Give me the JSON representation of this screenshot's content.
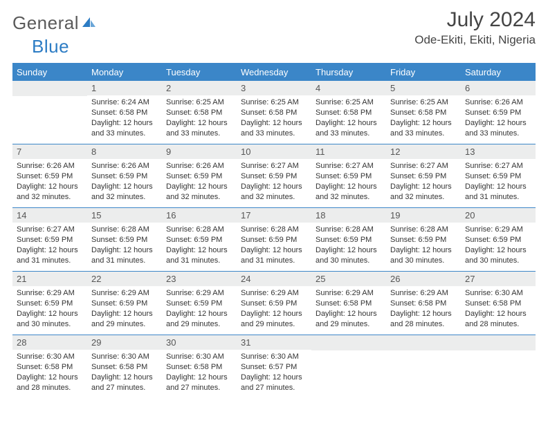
{
  "logo": {
    "text1": "General",
    "text2": "Blue",
    "text_color": "#5a5a5a",
    "accent_color": "#2c7cc4"
  },
  "header": {
    "month_title": "July 2024",
    "location": "Ode-Ekiti, Ekiti, Nigeria"
  },
  "colors": {
    "header_bg": "#3b86c8",
    "header_text": "#ffffff",
    "cell_num_bg": "#eceded",
    "divider": "#3b86c8"
  },
  "day_names": [
    "Sunday",
    "Monday",
    "Tuesday",
    "Wednesday",
    "Thursday",
    "Friday",
    "Saturday"
  ],
  "weeks": [
    [
      {
        "n": "",
        "sunrise": "",
        "sunset": "",
        "daylight1": "",
        "daylight2": ""
      },
      {
        "n": "1",
        "sunrise": "Sunrise: 6:24 AM",
        "sunset": "Sunset: 6:58 PM",
        "daylight1": "Daylight: 12 hours",
        "daylight2": "and 33 minutes."
      },
      {
        "n": "2",
        "sunrise": "Sunrise: 6:25 AM",
        "sunset": "Sunset: 6:58 PM",
        "daylight1": "Daylight: 12 hours",
        "daylight2": "and 33 minutes."
      },
      {
        "n": "3",
        "sunrise": "Sunrise: 6:25 AM",
        "sunset": "Sunset: 6:58 PM",
        "daylight1": "Daylight: 12 hours",
        "daylight2": "and 33 minutes."
      },
      {
        "n": "4",
        "sunrise": "Sunrise: 6:25 AM",
        "sunset": "Sunset: 6:58 PM",
        "daylight1": "Daylight: 12 hours",
        "daylight2": "and 33 minutes."
      },
      {
        "n": "5",
        "sunrise": "Sunrise: 6:25 AM",
        "sunset": "Sunset: 6:58 PM",
        "daylight1": "Daylight: 12 hours",
        "daylight2": "and 33 minutes."
      },
      {
        "n": "6",
        "sunrise": "Sunrise: 6:26 AM",
        "sunset": "Sunset: 6:59 PM",
        "daylight1": "Daylight: 12 hours",
        "daylight2": "and 33 minutes."
      }
    ],
    [
      {
        "n": "7",
        "sunrise": "Sunrise: 6:26 AM",
        "sunset": "Sunset: 6:59 PM",
        "daylight1": "Daylight: 12 hours",
        "daylight2": "and 32 minutes."
      },
      {
        "n": "8",
        "sunrise": "Sunrise: 6:26 AM",
        "sunset": "Sunset: 6:59 PM",
        "daylight1": "Daylight: 12 hours",
        "daylight2": "and 32 minutes."
      },
      {
        "n": "9",
        "sunrise": "Sunrise: 6:26 AM",
        "sunset": "Sunset: 6:59 PM",
        "daylight1": "Daylight: 12 hours",
        "daylight2": "and 32 minutes."
      },
      {
        "n": "10",
        "sunrise": "Sunrise: 6:27 AM",
        "sunset": "Sunset: 6:59 PM",
        "daylight1": "Daylight: 12 hours",
        "daylight2": "and 32 minutes."
      },
      {
        "n": "11",
        "sunrise": "Sunrise: 6:27 AM",
        "sunset": "Sunset: 6:59 PM",
        "daylight1": "Daylight: 12 hours",
        "daylight2": "and 32 minutes."
      },
      {
        "n": "12",
        "sunrise": "Sunrise: 6:27 AM",
        "sunset": "Sunset: 6:59 PM",
        "daylight1": "Daylight: 12 hours",
        "daylight2": "and 32 minutes."
      },
      {
        "n": "13",
        "sunrise": "Sunrise: 6:27 AM",
        "sunset": "Sunset: 6:59 PM",
        "daylight1": "Daylight: 12 hours",
        "daylight2": "and 31 minutes."
      }
    ],
    [
      {
        "n": "14",
        "sunrise": "Sunrise: 6:27 AM",
        "sunset": "Sunset: 6:59 PM",
        "daylight1": "Daylight: 12 hours",
        "daylight2": "and 31 minutes."
      },
      {
        "n": "15",
        "sunrise": "Sunrise: 6:28 AM",
        "sunset": "Sunset: 6:59 PM",
        "daylight1": "Daylight: 12 hours",
        "daylight2": "and 31 minutes."
      },
      {
        "n": "16",
        "sunrise": "Sunrise: 6:28 AM",
        "sunset": "Sunset: 6:59 PM",
        "daylight1": "Daylight: 12 hours",
        "daylight2": "and 31 minutes."
      },
      {
        "n": "17",
        "sunrise": "Sunrise: 6:28 AM",
        "sunset": "Sunset: 6:59 PM",
        "daylight1": "Daylight: 12 hours",
        "daylight2": "and 31 minutes."
      },
      {
        "n": "18",
        "sunrise": "Sunrise: 6:28 AM",
        "sunset": "Sunset: 6:59 PM",
        "daylight1": "Daylight: 12 hours",
        "daylight2": "and 30 minutes."
      },
      {
        "n": "19",
        "sunrise": "Sunrise: 6:28 AM",
        "sunset": "Sunset: 6:59 PM",
        "daylight1": "Daylight: 12 hours",
        "daylight2": "and 30 minutes."
      },
      {
        "n": "20",
        "sunrise": "Sunrise: 6:29 AM",
        "sunset": "Sunset: 6:59 PM",
        "daylight1": "Daylight: 12 hours",
        "daylight2": "and 30 minutes."
      }
    ],
    [
      {
        "n": "21",
        "sunrise": "Sunrise: 6:29 AM",
        "sunset": "Sunset: 6:59 PM",
        "daylight1": "Daylight: 12 hours",
        "daylight2": "and 30 minutes."
      },
      {
        "n": "22",
        "sunrise": "Sunrise: 6:29 AM",
        "sunset": "Sunset: 6:59 PM",
        "daylight1": "Daylight: 12 hours",
        "daylight2": "and 29 minutes."
      },
      {
        "n": "23",
        "sunrise": "Sunrise: 6:29 AM",
        "sunset": "Sunset: 6:59 PM",
        "daylight1": "Daylight: 12 hours",
        "daylight2": "and 29 minutes."
      },
      {
        "n": "24",
        "sunrise": "Sunrise: 6:29 AM",
        "sunset": "Sunset: 6:59 PM",
        "daylight1": "Daylight: 12 hours",
        "daylight2": "and 29 minutes."
      },
      {
        "n": "25",
        "sunrise": "Sunrise: 6:29 AM",
        "sunset": "Sunset: 6:58 PM",
        "daylight1": "Daylight: 12 hours",
        "daylight2": "and 29 minutes."
      },
      {
        "n": "26",
        "sunrise": "Sunrise: 6:29 AM",
        "sunset": "Sunset: 6:58 PM",
        "daylight1": "Daylight: 12 hours",
        "daylight2": "and 28 minutes."
      },
      {
        "n": "27",
        "sunrise": "Sunrise: 6:30 AM",
        "sunset": "Sunset: 6:58 PM",
        "daylight1": "Daylight: 12 hours",
        "daylight2": "and 28 minutes."
      }
    ],
    [
      {
        "n": "28",
        "sunrise": "Sunrise: 6:30 AM",
        "sunset": "Sunset: 6:58 PM",
        "daylight1": "Daylight: 12 hours",
        "daylight2": "and 28 minutes."
      },
      {
        "n": "29",
        "sunrise": "Sunrise: 6:30 AM",
        "sunset": "Sunset: 6:58 PM",
        "daylight1": "Daylight: 12 hours",
        "daylight2": "and 27 minutes."
      },
      {
        "n": "30",
        "sunrise": "Sunrise: 6:30 AM",
        "sunset": "Sunset: 6:58 PM",
        "daylight1": "Daylight: 12 hours",
        "daylight2": "and 27 minutes."
      },
      {
        "n": "31",
        "sunrise": "Sunrise: 6:30 AM",
        "sunset": "Sunset: 6:57 PM",
        "daylight1": "Daylight: 12 hours",
        "daylight2": "and 27 minutes."
      },
      {
        "n": "",
        "sunrise": "",
        "sunset": "",
        "daylight1": "",
        "daylight2": ""
      },
      {
        "n": "",
        "sunrise": "",
        "sunset": "",
        "daylight1": "",
        "daylight2": ""
      },
      {
        "n": "",
        "sunrise": "",
        "sunset": "",
        "daylight1": "",
        "daylight2": ""
      }
    ]
  ]
}
